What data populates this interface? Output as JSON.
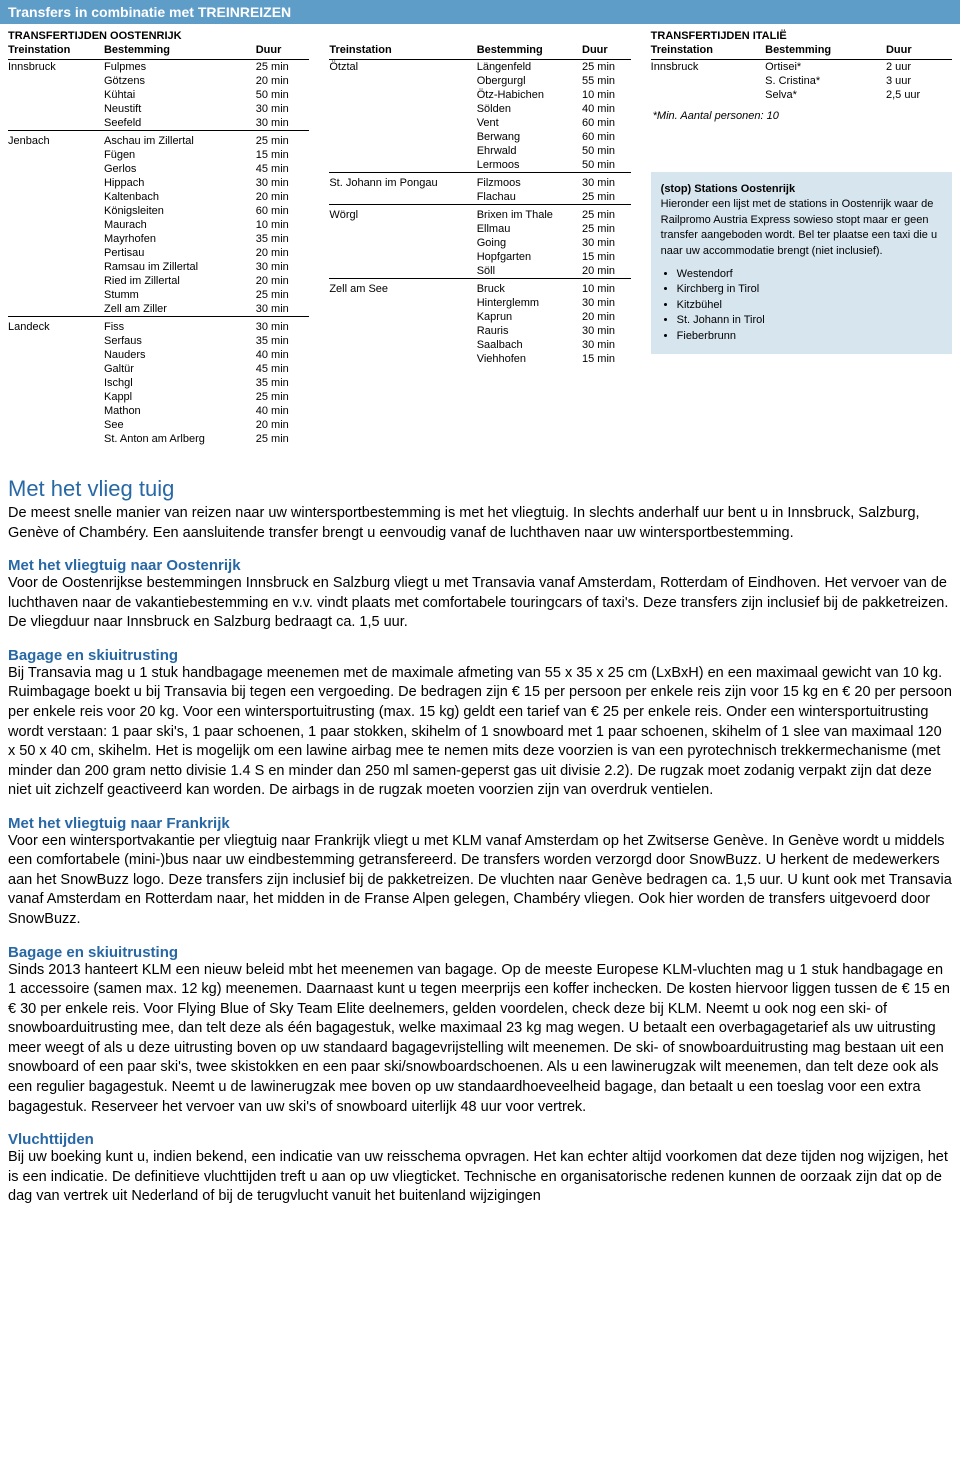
{
  "header_bar": "Transfers in combinatie met TREINREIZEN",
  "austria_title": "TRANSFERTIJDEN OOSTENRIJK",
  "italy_title": "TRANSFERTIJDEN ITALIË",
  "columns": {
    "station": "Treinstation",
    "dest": "Bestemming",
    "dur": "Duur"
  },
  "austria_col1": [
    {
      "station": "Innsbruck",
      "rows": [
        [
          "Fulpmes",
          "25 min"
        ],
        [
          "Götzens",
          "20 min"
        ],
        [
          "Kühtai",
          "50 min"
        ],
        [
          "Neustift",
          "30 min"
        ],
        [
          "Seefeld",
          "30 min"
        ]
      ]
    },
    {
      "station": "Jenbach",
      "rows": [
        [
          "Aschau im Zillertal",
          "25 min"
        ],
        [
          "Fügen",
          "15 min"
        ],
        [
          "Gerlos",
          "45 min"
        ],
        [
          "Hippach",
          "30 min"
        ],
        [
          "Kaltenbach",
          "20 min"
        ],
        [
          "Königsleiten",
          "60 min"
        ],
        [
          "Maurach",
          "10 min"
        ],
        [
          "Mayrhofen",
          "35 min"
        ],
        [
          "Pertisau",
          "20 min"
        ],
        [
          "Ramsau im Zillertal",
          "30 min"
        ],
        [
          "Ried im Zillertal",
          "20 min"
        ],
        [
          "Stumm",
          "25 min"
        ],
        [
          "Zell am Ziller",
          "30 min"
        ]
      ]
    },
    {
      "station": "Landeck",
      "rows": [
        [
          "Fiss",
          "30 min"
        ],
        [
          "Serfaus",
          "35 min"
        ],
        [
          "Nauders",
          "40 min"
        ],
        [
          "Galtür",
          "45 min"
        ],
        [
          "Ischgl",
          "35 min"
        ],
        [
          "Kappl",
          "25 min"
        ],
        [
          "Mathon",
          "40 min"
        ],
        [
          "See",
          "20 min"
        ],
        [
          "St. Anton am Arlberg",
          "25 min"
        ]
      ]
    }
  ],
  "austria_col2": [
    {
      "station": "Ötztal",
      "rows": [
        [
          "Längenfeld",
          "25 min"
        ],
        [
          "Obergurgl",
          "55 min"
        ],
        [
          "Ötz-Habichen",
          "10 min"
        ],
        [
          "Sölden",
          "40 min"
        ],
        [
          "Vent",
          "60 min"
        ],
        [
          "Berwang",
          "60 min"
        ],
        [
          "Ehrwald",
          "50 min"
        ],
        [
          "Lermoos",
          "50 min"
        ]
      ]
    },
    {
      "station": "St. Johann im Pongau",
      "rows": [
        [
          "Filzmoos",
          "30 min"
        ],
        [
          "Flachau",
          "25 min"
        ]
      ]
    },
    {
      "station": "Wörgl",
      "rows": [
        [
          "Brixen im Thale",
          "25 min"
        ],
        [
          "Ellmau",
          "25 min"
        ],
        [
          "Going",
          "30 min"
        ],
        [
          "Hopfgarten",
          "15 min"
        ],
        [
          "Söll",
          "20 min"
        ]
      ]
    },
    {
      "station": "Zell am See",
      "rows": [
        [
          "Bruck",
          "10 min"
        ],
        [
          "Hinterglemm",
          "30 min"
        ],
        [
          "Kaprun",
          "20 min"
        ],
        [
          "Rauris",
          "30 min"
        ],
        [
          "Saalbach",
          "30 min"
        ],
        [
          "Viehhofen",
          "15 min"
        ]
      ]
    }
  ],
  "italy": [
    {
      "station": "Innsbruck",
      "rows": [
        [
          "Ortisei*",
          "2 uur"
        ],
        [
          "S. Cristina*",
          "3 uur"
        ],
        [
          "Selva*",
          "2,5 uur"
        ]
      ]
    }
  ],
  "italy_note": "*Min. Aantal personen: 10",
  "infobox": {
    "title": "(stop) Stations Oostenrijk",
    "text": "Hieronder een lijst met de stations in Oostenrijk waar de Railpromo Austria Express sowieso stopt maar er geen transfer aangeboden wordt. Bel ter plaatse een taxi die u naar uw accommodatie brengt (niet inclusief).",
    "items": [
      "Westendorf",
      "Kirchberg in Tirol",
      "Kitzbühel",
      "St. Johann in Tirol",
      "Fieberbrunn"
    ]
  },
  "text": {
    "h1": "Met het vlieg tuig",
    "intro1": "De meest snelle manier van reizen naar uw wintersportbestemming is met het vliegtuig. In slechts anderhalf uur bent u in Innsbruck, Salzburg, Genève of Chambéry. Een aansluitende transfer brengt u eenvoudig vanaf de luchthaven naar uw wintersportbestemming.",
    "h_oost": "Met het vliegtuig naar Oostenrijk",
    "p_oost": "Voor de Oostenrijkse bestemmingen Innsbruck en Salzburg vliegt u met Transavia vanaf Amsterdam, Rotterdam of Eindhoven. Het vervoer van de luchthaven naar de vakantiebestemming en v.v. vindt plaats met comfortabele touringcars of taxi's. Deze transfers zijn inclusief bij de pakketreizen. De vliegduur naar Innsbruck en Salzburg bedraagt ca. 1,5 uur.",
    "h_bag1": "Bagage en skiuitrusting",
    "p_bag1": "Bij Transavia mag u 1 stuk handbagage meenemen met de maximale afmeting van 55 x 35 x 25 cm (LxBxH) en een maximaal gewicht van 10 kg. Ruimbagage boekt u bij Transavia bij tegen een vergoeding. De bedragen zijn € 15 per persoon per enkele reis zijn voor 15 kg en € 20 per persoon per enkele reis voor 20 kg. Voor een wintersportuitrusting (max. 15 kg) geldt een tarief van € 25 per enkele reis. Onder een wintersportuitrusting wordt verstaan: 1 paar ski's, 1 paar schoenen, 1 paar stokken, skihelm of 1 snowboard met 1 paar schoenen, skihelm of 1 slee van maximaal 120 x 50 x 40 cm, skihelm. Het is mogelijk om een lawine airbag mee te nemen mits deze voorzien is van een pyrotechnisch trekkermechanisme (met minder dan 200 gram netto divisie 1.4 S en minder dan 250 ml samen-geperst gas uit divisie 2.2). De rugzak moet zodanig verpakt zijn dat deze niet uit zichzelf geactiveerd kan worden. De airbags in de rugzak moeten voorzien zijn van overdruk ventielen.",
    "h_fr": "Met het vliegtuig naar Frankrijk",
    "p_fr": "Voor een wintersportvakantie per vliegtuig naar Frankrijk vliegt u met KLM vanaf Amsterdam op het Zwitserse Genève. In Genève wordt u middels een comfortabele (mini-)bus naar uw eindbestemming getransfereerd. De transfers worden verzorgd door SnowBuzz. U herkent de medewerkers aan het SnowBuzz logo. Deze transfers zijn inclusief bij de pakketreizen. De vluchten naar Genève bedragen ca. 1,5 uur. U kunt ook met Transavia vanaf Amsterdam en Rotterdam naar, het midden in de Franse Alpen gelegen, Chambéry vliegen. Ook hier worden de transfers uitgevoerd door SnowBuzz.",
    "h_bag2": "Bagage en skiuitrusting",
    "p_bag2": "Sinds 2013 hanteert KLM een nieuw beleid mbt het meenemen van bagage. Op de meeste Europese KLM-vluchten mag u 1 stuk handbagage en 1 accessoire (samen max. 12 kg) meenemen. Daarnaast kunt u tegen meerprijs een koffer inchecken. De kosten hiervoor liggen tussen de € 15 en € 30 per enkele reis. Voor Flying Blue of Sky Team Elite deelnemers, gelden voordelen, check deze bij KLM. Neemt u ook nog een ski- of snowboarduitrusting mee, dan telt deze als één bagagestuk, welke maximaal 23 kg mag wegen. U betaalt een overbagagetarief als uw uitrusting meer weegt of als u deze uitrusting boven op uw standaard bagagevrijstelling wilt meenemen. De ski- of snowboarduitrusting mag bestaan uit een snowboard of een paar ski's, twee skistokken en een paar ski/snowboardschoenen. Als u een lawinerugzak wilt meenemen, dan telt deze ook als een regulier bagagestuk. Neemt u de lawinerugzak mee boven op uw standaardhoeveelheid bagage, dan betaalt u een toeslag voor een extra bagagestuk. Reserveer het vervoer van uw ski's of snowboard uiterlijk 48 uur voor vertrek.",
    "h_vl": "Vluchttijden",
    "p_vl": "Bij uw boeking kunt u, indien bekend, een indicatie van uw reisschema opvragen. Het kan echter altijd voorkomen dat deze tijden nog wijzigen, het is een indicatie. De definitieve vluchttijden treft u aan op uw vliegticket. Technische en organisatorische redenen kunnen de oorzaak zijn dat op de dag van vertrek uit Nederland of bij de terugvlucht vanuit het buitenland wijzigingen"
  }
}
